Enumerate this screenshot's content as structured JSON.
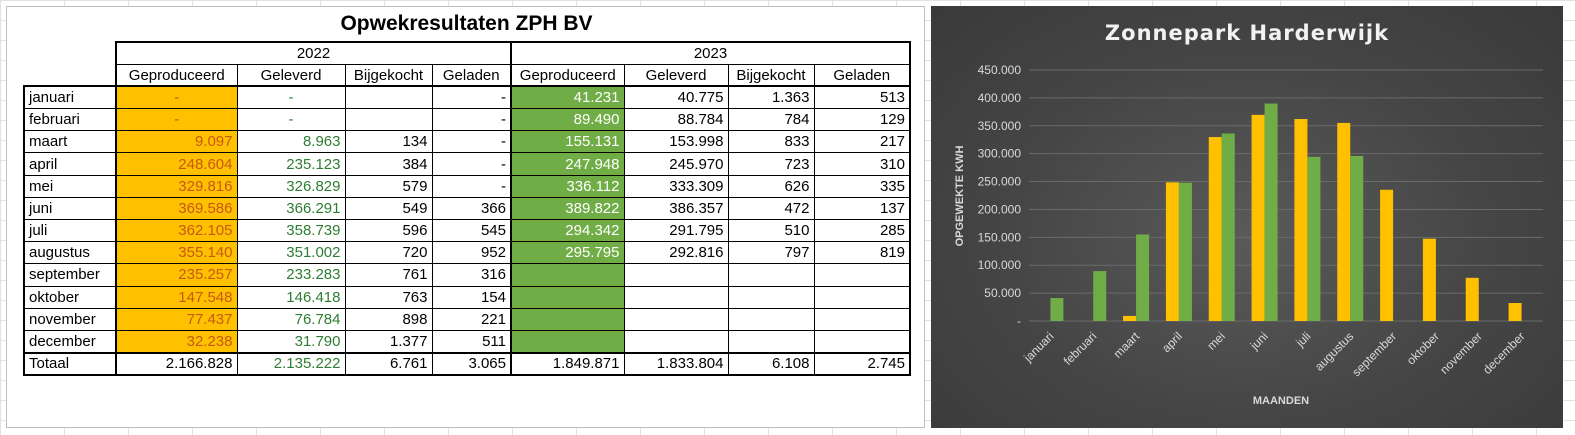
{
  "table": {
    "title": "Opwekresultaten ZPH BV",
    "years": [
      "2022",
      "2023"
    ],
    "columns": [
      "Geproduceerd",
      "Geleverd",
      "Bijgekocht",
      "Geladen"
    ],
    "rows": [
      {
        "month": "januari",
        "y2022": [
          "-",
          "-",
          "",
          "-"
        ],
        "y2023": [
          "41.231",
          "40.775",
          "1.363",
          "513"
        ]
      },
      {
        "month": "februari",
        "y2022": [
          "-",
          "-",
          "",
          "-"
        ],
        "y2023": [
          "89.490",
          "88.784",
          "784",
          "129"
        ]
      },
      {
        "month": "maart",
        "y2022": [
          "9.097",
          "8.963",
          "134",
          "-"
        ],
        "y2023": [
          "155.131",
          "153.998",
          "833",
          "217"
        ]
      },
      {
        "month": "april",
        "y2022": [
          "248.604",
          "235.123",
          "384",
          "-"
        ],
        "y2023": [
          "247.948",
          "245.970",
          "723",
          "310"
        ]
      },
      {
        "month": "mei",
        "y2022": [
          "329.816",
          "326.829",
          "579",
          "-"
        ],
        "y2023": [
          "336.112",
          "333.309",
          "626",
          "335"
        ]
      },
      {
        "month": "juni",
        "y2022": [
          "369.586",
          "366.291",
          "549",
          "366"
        ],
        "y2023": [
          "389.822",
          "386.357",
          "472",
          "137"
        ]
      },
      {
        "month": "juli",
        "y2022": [
          "362.105",
          "358.739",
          "596",
          "545"
        ],
        "y2023": [
          "294.342",
          "291.795",
          "510",
          "285"
        ]
      },
      {
        "month": "augustus",
        "y2022": [
          "355.140",
          "351.002",
          "720",
          "952"
        ],
        "y2023": [
          "295.795",
          "292.816",
          "797",
          "819"
        ]
      },
      {
        "month": "september",
        "y2022": [
          "235.257",
          "233.283",
          "761",
          "316"
        ],
        "y2023": [
          "",
          "",
          "",
          ""
        ]
      },
      {
        "month": "oktober",
        "y2022": [
          "147.548",
          "146.418",
          "763",
          "154"
        ],
        "y2023": [
          "",
          "",
          "",
          ""
        ]
      },
      {
        "month": "november",
        "y2022": [
          "77.437",
          "76.784",
          "898",
          "221"
        ],
        "y2023": [
          "",
          "",
          "",
          ""
        ]
      },
      {
        "month": "december",
        "y2022": [
          "32.238",
          "31.790",
          "1.377",
          "511"
        ],
        "y2023": [
          "",
          "",
          "",
          ""
        ]
      }
    ],
    "total": {
      "label": "Totaal",
      "y2022": [
        "2.166.828",
        "2.135.222",
        "6.761",
        "3.065"
      ],
      "y2023": [
        "1.849.871",
        "1.833.804",
        "6.108",
        "2.745"
      ]
    }
  },
  "chart_data": {
    "type": "bar",
    "title": "Zonnepark Harderwijk",
    "xlabel": "MAANDEN",
    "ylabel": "OPGEWEKTE KWH",
    "categories": [
      "januari",
      "februari",
      "maart",
      "april",
      "mei",
      "juni",
      "juli",
      "augustus",
      "september",
      "oktober",
      "november",
      "december"
    ],
    "series": [
      {
        "values": [
          0,
          0,
          9097,
          248604,
          329816,
          369586,
          362105,
          355140,
          235257,
          147548,
          77437,
          32238
        ],
        "color": "#ffc000"
      },
      {
        "values": [
          41231,
          89490,
          155131,
          247948,
          336112,
          389822,
          294342,
          295795,
          null,
          null,
          null,
          null
        ],
        "color": "#70ad47"
      }
    ],
    "ylim": [
      0,
      450000
    ],
    "yticks": [
      "-",
      "50.000",
      "100.000",
      "150.000",
      "200.000",
      "250.000",
      "300.000",
      "350.000",
      "400.000",
      "450.000"
    ],
    "grid": true,
    "legend": "none",
    "background": "#474747"
  }
}
